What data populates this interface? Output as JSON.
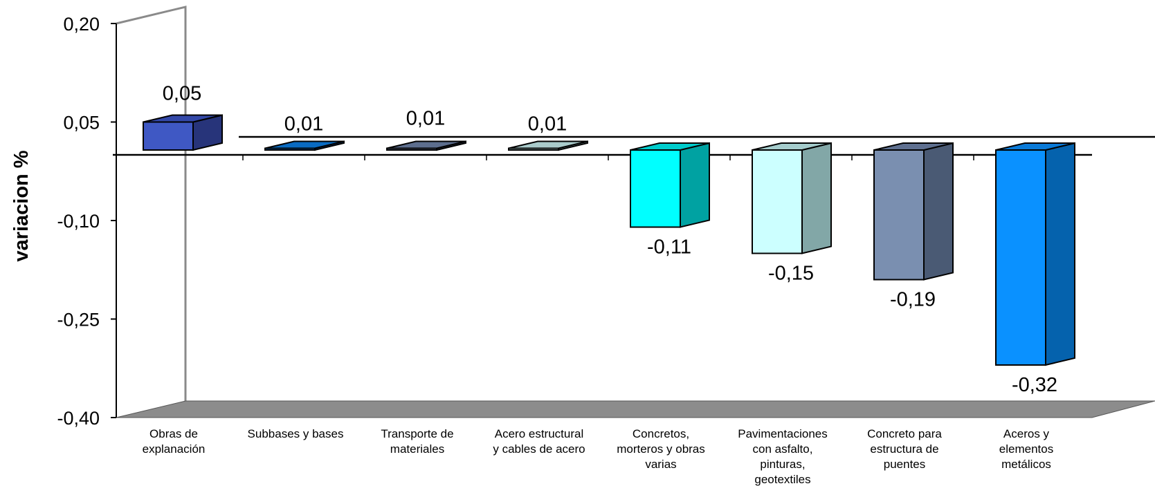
{
  "chart_data": {
    "type": "bar",
    "ylabel": "variacion %",
    "ylim": [
      -0.4,
      0.2
    ],
    "yticks": [
      0.2,
      0.05,
      -0.1,
      -0.25,
      -0.4
    ],
    "ytick_labels": [
      "0,20",
      "0,05",
      "-0,10",
      "-0,25",
      "-0,40"
    ],
    "categories": [
      [
        "Obras de",
        "explanación"
      ],
      [
        "Subbases y bases"
      ],
      [
        "Transporte de",
        "materiales"
      ],
      [
        "Acero estructural",
        "y cables de acero"
      ],
      [
        "Concretos,",
        "morteros y obras",
        "varias"
      ],
      [
        "Pavimentaciones",
        "con asfalto,",
        "pinturas,",
        "geotextiles"
      ],
      [
        "Concreto para",
        "estructura de",
        "puentes"
      ],
      [
        "Aceros y",
        "elementos",
        "metálicos"
      ]
    ],
    "values": [
      0.05,
      0.01,
      0.01,
      0.01,
      -0.11,
      -0.15,
      -0.19,
      -0.32
    ],
    "value_labels": [
      "0,05",
      "0,01",
      "0,01",
      "0,01",
      "-0,11",
      "-0,15",
      "-0,19",
      "-0,32"
    ],
    "colors": [
      {
        "front": "#3f58c4",
        "side": "#27347a",
        "top": "#3348a8"
      },
      {
        "front": "#0c7ee0",
        "side": "#064f9a",
        "top": "#0a6bc2"
      },
      {
        "front": "#7385a6",
        "side": "#46536d",
        "top": "#5d6e8e"
      },
      {
        "front": "#d4fdfd",
        "side": "#86a9a9",
        "top": "#aacccc"
      },
      {
        "front": "#00ffff",
        "side": "#00a2a2",
        "top": "#00cccc"
      },
      {
        "front": "#ccffff",
        "side": "#82a7a7",
        "top": "#a5cccc"
      },
      {
        "front": "#7a8fb0",
        "side": "#4a5a74",
        "top": "#5f7090"
      },
      {
        "front": "#0a91ff",
        "side": "#0562ad",
        "top": "#0a7ad8"
      }
    ],
    "floor_color": "#8c8c8c",
    "grid": false,
    "legend": "none"
  }
}
